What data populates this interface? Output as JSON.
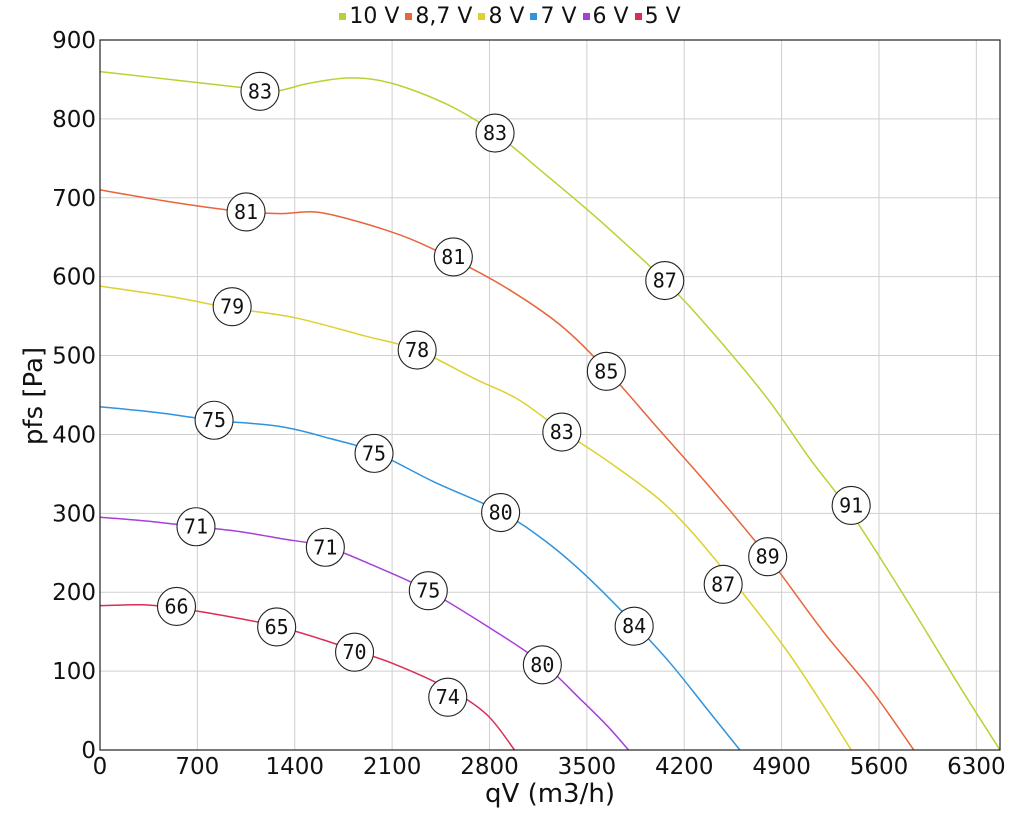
{
  "chart_data": {
    "type": "line",
    "xlabel": "qV (m3/h)",
    "ylabel": "pfs [Pa]",
    "xlim": [
      0,
      6470
    ],
    "ylim": [
      0,
      900
    ],
    "xticks": [
      0,
      700,
      1400,
      2100,
      2800,
      3500,
      4200,
      4900,
      5600,
      6300
    ],
    "yticks": [
      0,
      100,
      200,
      300,
      400,
      500,
      600,
      700,
      800,
      900
    ],
    "grid": true,
    "legend_position": "top",
    "series": [
      {
        "name": "10 V",
        "color": "#b5d334",
        "points": [
          [
            0,
            860
          ],
          [
            600,
            848
          ],
          [
            1000,
            840
          ],
          [
            1250,
            835
          ],
          [
            1500,
            845
          ],
          [
            1800,
            852
          ],
          [
            2100,
            845
          ],
          [
            2500,
            818
          ],
          [
            2840,
            782
          ],
          [
            3200,
            730
          ],
          [
            3600,
            670
          ],
          [
            4060,
            595
          ],
          [
            4400,
            530
          ],
          [
            4800,
            445
          ],
          [
            5100,
            370
          ],
          [
            5400,
            300
          ],
          [
            5800,
            190
          ],
          [
            6200,
            75
          ],
          [
            6470,
            0
          ]
        ],
        "badges": [
          {
            "x": 1150,
            "y": 835,
            "label": "83"
          },
          {
            "x": 2840,
            "y": 782,
            "label": "83"
          },
          {
            "x": 4060,
            "y": 595,
            "label": "87"
          },
          {
            "x": 5400,
            "y": 310,
            "label": "91"
          }
        ]
      },
      {
        "name": "8,7 V",
        "color": "#e8643a",
        "points": [
          [
            0,
            710
          ],
          [
            500,
            695
          ],
          [
            1000,
            683
          ],
          [
            1300,
            680
          ],
          [
            1550,
            682
          ],
          [
            1850,
            670
          ],
          [
            2200,
            650
          ],
          [
            2510,
            625
          ],
          [
            2900,
            588
          ],
          [
            3300,
            540
          ],
          [
            3640,
            482
          ],
          [
            4000,
            410
          ],
          [
            4400,
            330
          ],
          [
            4800,
            245
          ],
          [
            5200,
            150
          ],
          [
            5550,
            75
          ],
          [
            5850,
            0
          ]
        ],
        "badges": [
          {
            "x": 1050,
            "y": 682,
            "label": "81"
          },
          {
            "x": 2540,
            "y": 625,
            "label": "81"
          },
          {
            "x": 3640,
            "y": 480,
            "label": "85"
          },
          {
            "x": 4800,
            "y": 245,
            "label": "89"
          }
        ]
      },
      {
        "name": "8 V",
        "color": "#dcd12e",
        "points": [
          [
            0,
            588
          ],
          [
            500,
            575
          ],
          [
            950,
            560
          ],
          [
            1400,
            548
          ],
          [
            1900,
            525
          ],
          [
            2280,
            507
          ],
          [
            2700,
            470
          ],
          [
            3000,
            445
          ],
          [
            3320,
            405
          ],
          [
            3700,
            360
          ],
          [
            4100,
            305
          ],
          [
            4500,
            225
          ],
          [
            4900,
            135
          ],
          [
            5150,
            70
          ],
          [
            5400,
            0
          ]
        ],
        "badges": [
          {
            "x": 950,
            "y": 562,
            "label": "79"
          },
          {
            "x": 2280,
            "y": 507,
            "label": "78"
          },
          {
            "x": 3320,
            "y": 403,
            "label": "83"
          },
          {
            "x": 4480,
            "y": 210,
            "label": "87"
          }
        ]
      },
      {
        "name": "7 V",
        "color": "#2f93dd",
        "points": [
          [
            0,
            435
          ],
          [
            400,
            428
          ],
          [
            820,
            418
          ],
          [
            1300,
            410
          ],
          [
            1650,
            395
          ],
          [
            1970,
            378
          ],
          [
            2400,
            340
          ],
          [
            2880,
            302
          ],
          [
            3200,
            265
          ],
          [
            3500,
            220
          ],
          [
            3840,
            160
          ],
          [
            4100,
            110
          ],
          [
            4350,
            55
          ],
          [
            4600,
            0
          ]
        ],
        "badges": [
          {
            "x": 820,
            "y": 418,
            "label": "75"
          },
          {
            "x": 1970,
            "y": 376,
            "label": "75"
          },
          {
            "x": 2880,
            "y": 301,
            "label": "80"
          },
          {
            "x": 3840,
            "y": 157,
            "label": "84"
          }
        ]
      },
      {
        "name": "6 V",
        "color": "#a63fd9",
        "points": [
          [
            0,
            295
          ],
          [
            350,
            290
          ],
          [
            690,
            283
          ],
          [
            1000,
            277
          ],
          [
            1300,
            268
          ],
          [
            1620,
            258
          ],
          [
            1950,
            235
          ],
          [
            2360,
            202
          ],
          [
            2800,
            155
          ],
          [
            3180,
            110
          ],
          [
            3450,
            65
          ],
          [
            3650,
            30
          ],
          [
            3800,
            0
          ]
        ],
        "badges": [
          {
            "x": 690,
            "y": 283,
            "label": "71"
          },
          {
            "x": 1620,
            "y": 257,
            "label": "71"
          },
          {
            "x": 2360,
            "y": 202,
            "label": "75"
          },
          {
            "x": 3180,
            "y": 108,
            "label": "80"
          }
        ]
      },
      {
        "name": "5 V",
        "color": "#d92d55",
        "points": [
          [
            0,
            183
          ],
          [
            300,
            184
          ],
          [
            550,
            180
          ],
          [
            900,
            170
          ],
          [
            1270,
            157
          ],
          [
            1600,
            140
          ],
          [
            1830,
            126
          ],
          [
            2100,
            110
          ],
          [
            2500,
            78
          ],
          [
            2780,
            45
          ],
          [
            2980,
            0
          ]
        ],
        "badges": [
          {
            "x": 550,
            "y": 182,
            "label": "66"
          },
          {
            "x": 1270,
            "y": 156,
            "label": "65"
          },
          {
            "x": 1830,
            "y": 124,
            "label": "70"
          },
          {
            "x": 2500,
            "y": 67,
            "label": "74"
          }
        ]
      }
    ]
  }
}
